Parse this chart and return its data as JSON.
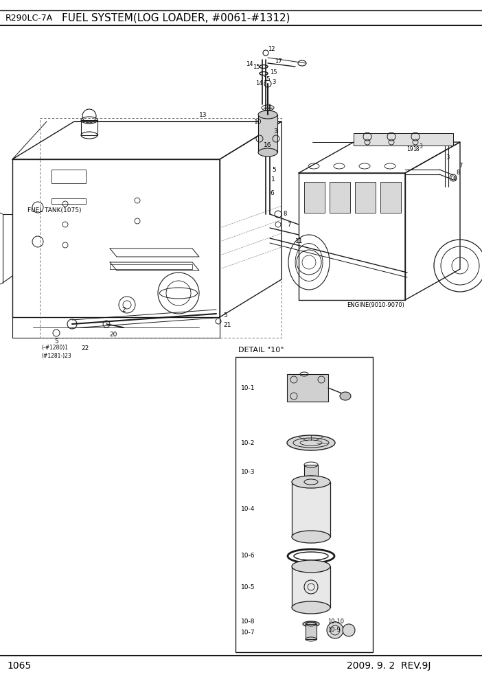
{
  "title_left": "R290LC-7A",
  "title_right": "FUEL SYSTEM(LOG LOADER, #0061-#1312)",
  "page_number": "1065",
  "date_text": "2009. 9. 2  REV.9J",
  "bg_color": "#ffffff",
  "line_color": "#1a1a1a",
  "detail_box_label": "DETAIL \"10\"",
  "fuel_tank_label": "FUEL TANK(1075)",
  "engine_label": "ENGINE(9010-9070)"
}
